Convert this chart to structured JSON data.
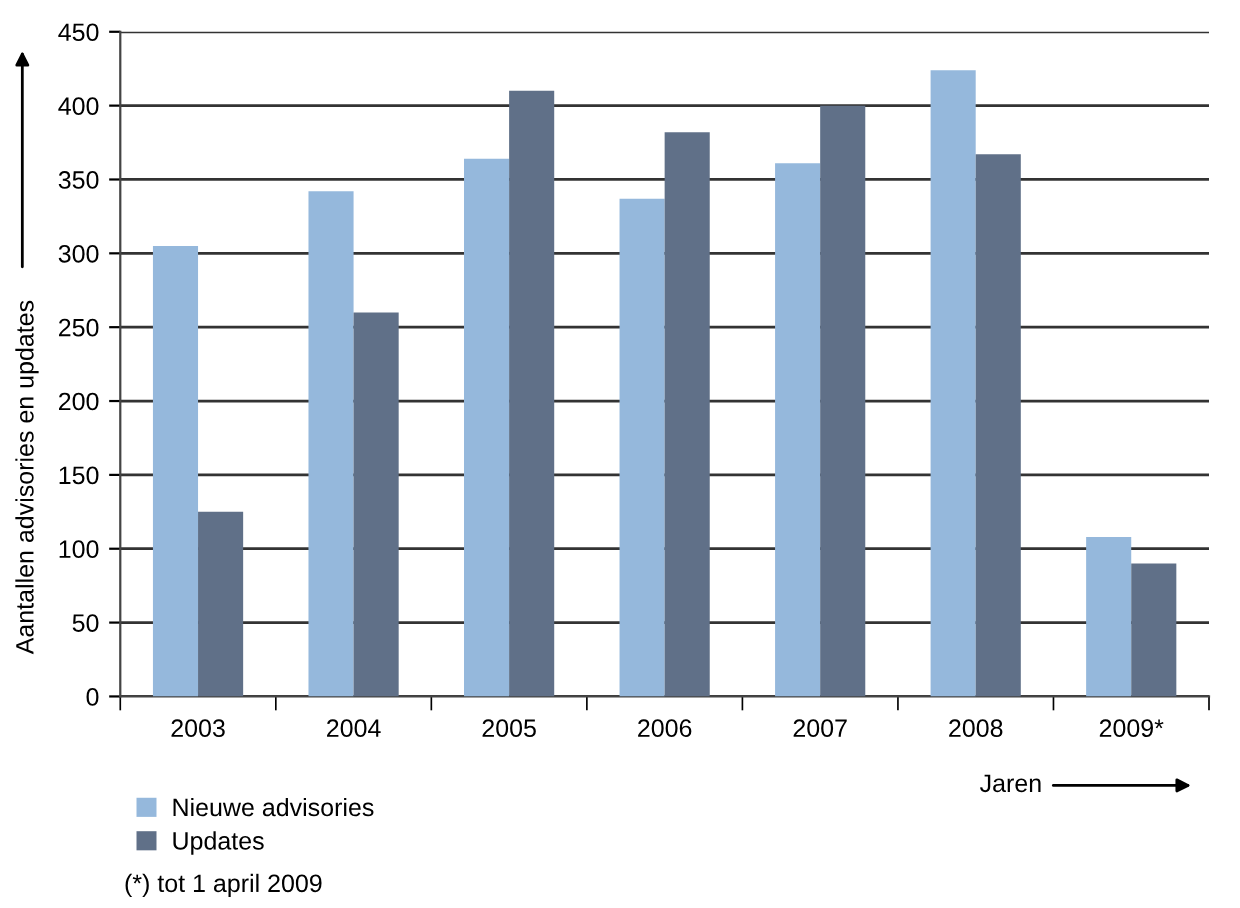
{
  "chart_data": {
    "type": "bar",
    "categories": [
      "2003",
      "2004",
      "2005",
      "2006",
      "2007",
      "2008",
      "2009*"
    ],
    "series": [
      {
        "name": "Nieuwe advisories",
        "color": "#95b8dc",
        "values": [
          305,
          342,
          364,
          337,
          361,
          424,
          108
        ]
      },
      {
        "name": "Updates",
        "color": "#607088",
        "values": [
          125,
          260,
          410,
          382,
          400,
          367,
          90
        ]
      }
    ],
    "xlabel": "Jaren",
    "ylabel": "Aantallen advisories en updates",
    "ylim": [
      0,
      450
    ],
    "yticks": [
      0,
      50,
      100,
      150,
      200,
      250,
      300,
      350,
      400,
      450
    ],
    "grid": "y",
    "legend": "bottom left",
    "annotations": [
      "(*) tot 1 april 2009"
    ]
  }
}
